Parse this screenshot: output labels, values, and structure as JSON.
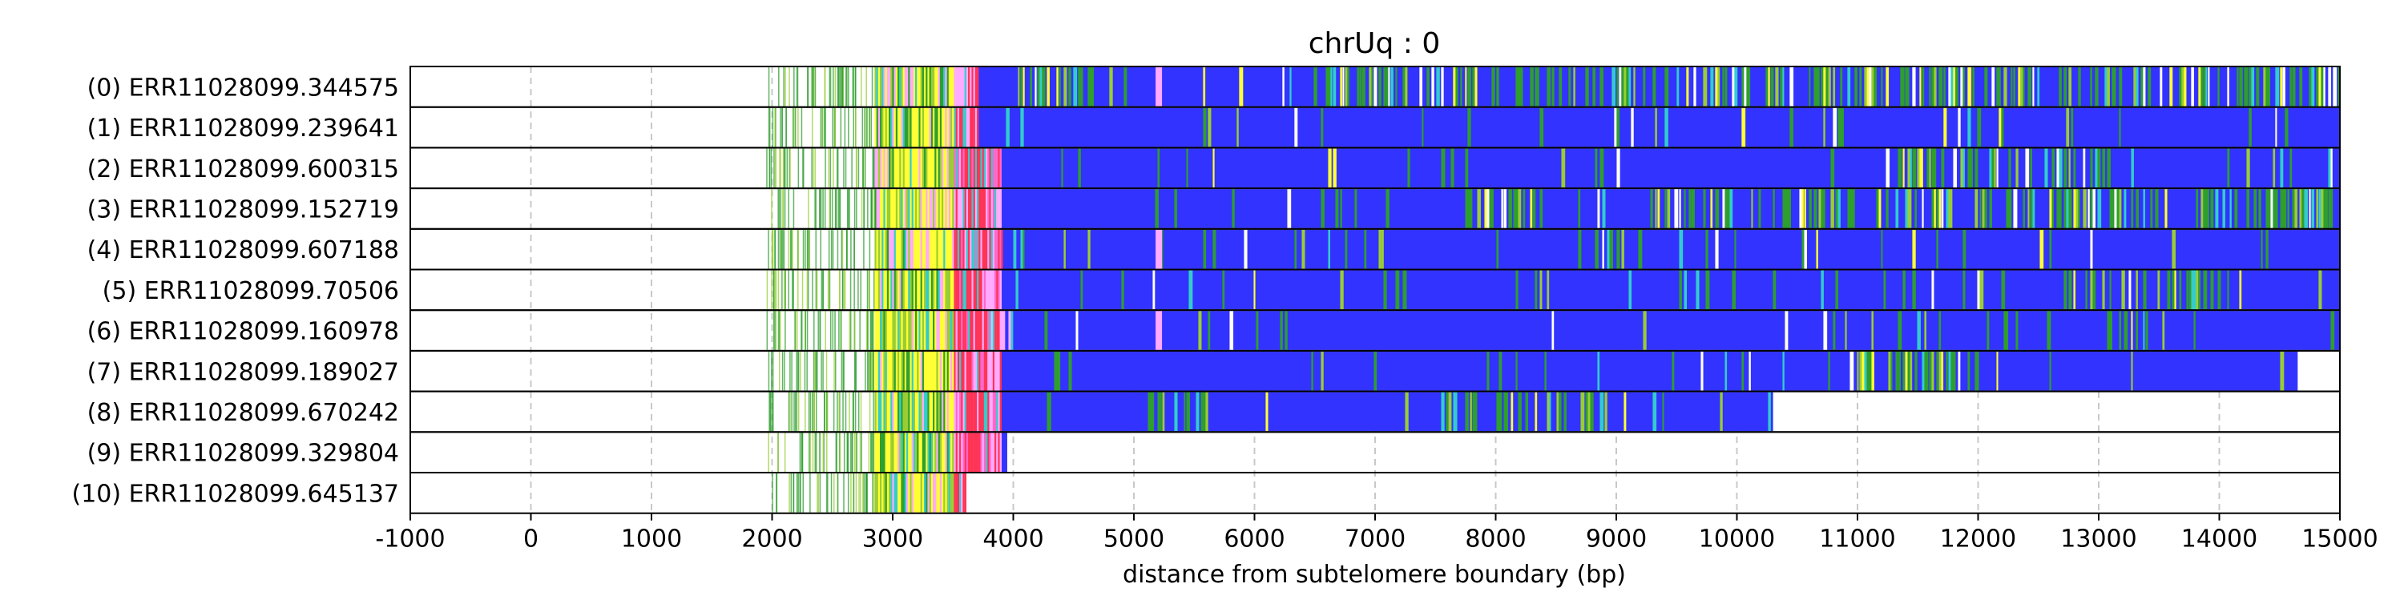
{
  "chart_data": {
    "type": "heatmap",
    "title": "chrUq : 0",
    "xlabel": "distance from subtelomere boundary (bp)",
    "ylabel": "",
    "xlim": [
      -1000,
      15000
    ],
    "x_ticks": [
      -1000,
      0,
      1000,
      2000,
      3000,
      4000,
      5000,
      6000,
      7000,
      8000,
      9000,
      10000,
      11000,
      12000,
      13000,
      14000,
      15000
    ],
    "grid": true,
    "grid_style": "dashed vertical",
    "colors": {
      "repeat": "#3333ff",
      "variant_green": "#2e9e2e",
      "variant_yellow": "#ffff33",
      "variant_red": "#ff3355",
      "variant_magenta": "#ff66cc",
      "variant_pink": "#ffaaff",
      "variant_cyan": "#33cccc",
      "variant_light_green": "#9acd32"
    },
    "reads": [
      {
        "label": "(0) ERR11028099.344575",
        "start": 1950,
        "end": 15000
      },
      {
        "label": "(1) ERR11028099.239641",
        "start": 1950,
        "end": 15000
      },
      {
        "label": "(2) ERR11028099.600315",
        "start": 1950,
        "end": 15000
      },
      {
        "label": "(3) ERR11028099.152719",
        "start": 1950,
        "end": 15000
      },
      {
        "label": "(4) ERR11028099.607188",
        "start": 1950,
        "end": 15000
      },
      {
        "label": "(5) ERR11028099.70506",
        "start": 1950,
        "end": 15000
      },
      {
        "label": "(6) ERR11028099.160978",
        "start": 1950,
        "end": 15000
      },
      {
        "label": "(7) ERR11028099.189027",
        "start": 1950,
        "end": 14650
      },
      {
        "label": "(8) ERR11028099.670242",
        "start": 1950,
        "end": 10300
      },
      {
        "label": "(9) ERR11028099.329804",
        "start": 1950,
        "end": 3950
      },
      {
        "label": "(10) ERR11028099.645137",
        "start": 1950,
        "end": 3600
      }
    ]
  }
}
